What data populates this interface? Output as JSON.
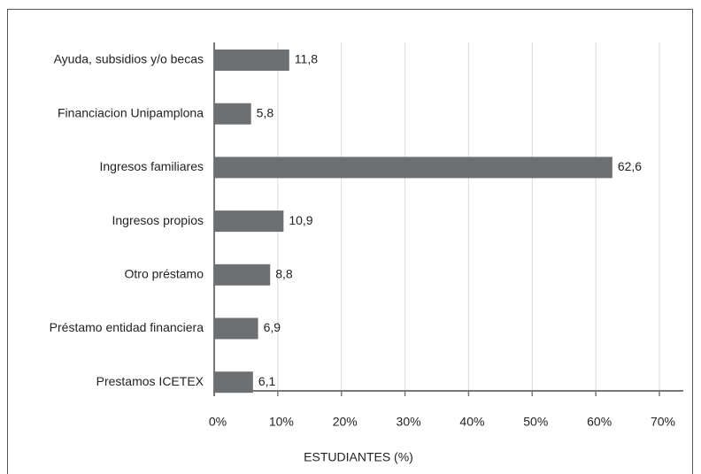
{
  "chart_data": {
    "type": "bar",
    "orientation": "horizontal",
    "x_label": "ESTUDIANTES (%)",
    "categories": [
      "Ayuda, subsidios y/o becas",
      "Financiacion Unipamplona",
      "Ingresos familiares",
      "Ingresos propios",
      "Otro préstamo",
      "Préstamo entidad financiera",
      "Prestamos ICETEX"
    ],
    "values": [
      11.8,
      5.8,
      62.6,
      10.9,
      8.8,
      6.9,
      6.1
    ],
    "value_labels": [
      "11,8",
      "5,8",
      "62,6",
      "10,9",
      "8,8",
      "6,9",
      "6,1"
    ],
    "color": "#6d7072",
    "xlim": [
      0,
      70
    ],
    "xticks": [
      {
        "value": 0,
        "label": "0%"
      },
      {
        "value": 10,
        "label": "10%"
      },
      {
        "value": 20,
        "label": "20%"
      },
      {
        "value": 30,
        "label": "30%"
      },
      {
        "value": 40,
        "label": "40%"
      },
      {
        "value": 50,
        "label": "50%"
      },
      {
        "value": 60,
        "label": "60%"
      },
      {
        "value": 70,
        "label": "70%"
      }
    ],
    "grid": true
  }
}
